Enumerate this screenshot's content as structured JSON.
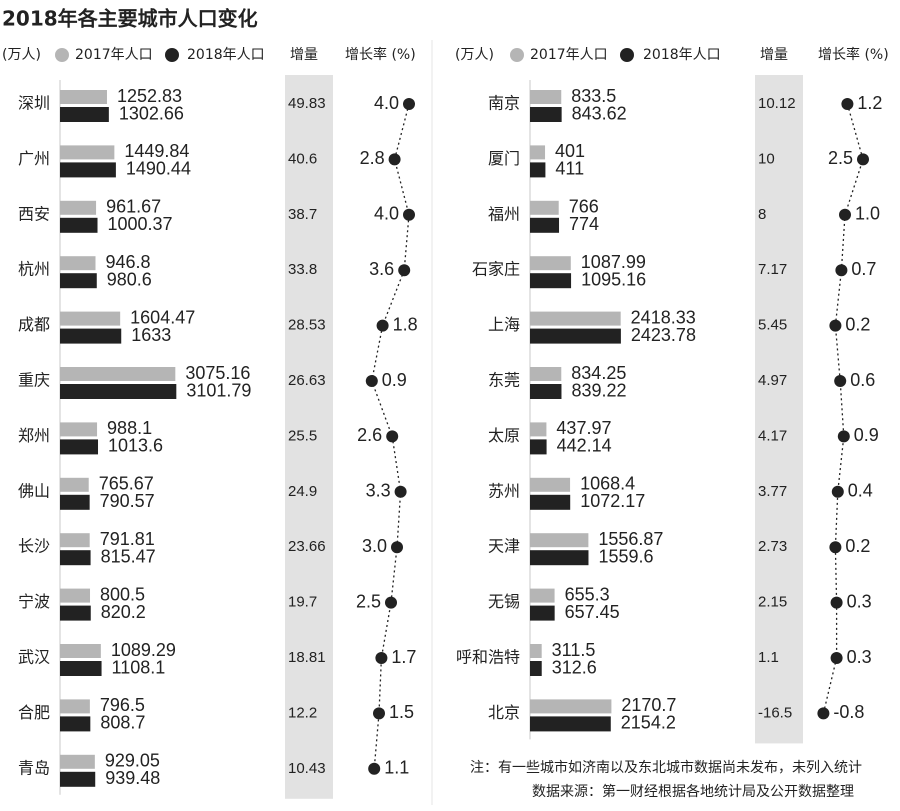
{
  "title": "2018年各主要城市人口变化",
  "notes": [
    "注：有一些城市如济南以及东北城市数据尚未发布，未列入统计",
    "数据来源：第一财经根据各地统计局及公开数据整理"
  ],
  "chart_data": [
    {
      "type": "bar",
      "orientation": "horizontal",
      "unit": "(万人)",
      "xlim": [
        0,
        4000
      ],
      "categories": [
        "深圳",
        "广州",
        "西安",
        "杭州",
        "成都",
        "重庆",
        "郑州",
        "佛山",
        "长沙",
        "宁波",
        "武汉",
        "合肥",
        "青岛"
      ],
      "series": [
        {
          "name": "2017年人口",
          "color": "#b5b5b5",
          "values": [
            1252.83,
            1449.84,
            961.67,
            946.8,
            1604.47,
            3075.16,
            988.1,
            765.67,
            791.81,
            800.5,
            1089.29,
            796.5,
            929.05
          ]
        },
        {
          "name": "2018年人口",
          "color": "#222222",
          "values": [
            1302.66,
            1490.44,
            1000.37,
            980.6,
            1633,
            3101.79,
            1013.6,
            790.57,
            815.47,
            820.2,
            1108.1,
            808.7,
            939.48
          ]
        }
      ],
      "increase": {
        "name": "增量",
        "values": [
          49.83,
          40.6,
          38.7,
          33.8,
          28.53,
          26.63,
          25.5,
          24.9,
          23.66,
          19.7,
          18.81,
          12.2,
          10.43
        ]
      },
      "growth": {
        "name": "增长率 (%)",
        "xlim": [
          -1,
          5
        ],
        "color": "#222222",
        "values": [
          4.0,
          2.8,
          4.0,
          3.6,
          1.8,
          0.9,
          2.6,
          3.3,
          3.0,
          2.5,
          1.7,
          1.5,
          1.1
        ],
        "value_labels": [
          "4.0",
          "2.8",
          "4.0",
          "3.6",
          "1.8",
          "0.9",
          "2.6",
          "3.3",
          "3.0",
          "2.5",
          "1.7",
          "1.5",
          "1.1"
        ]
      }
    },
    {
      "type": "bar",
      "orientation": "horizontal",
      "unit": "(万人)",
      "xlim": [
        0,
        4000
      ],
      "categories": [
        "南京",
        "厦门",
        "福州",
        "石家庄",
        "上海",
        "东莞",
        "太原",
        "苏州",
        "天津",
        "无锡",
        "呼和浩特",
        "北京"
      ],
      "series": [
        {
          "name": "2017年人口",
          "color": "#b5b5b5",
          "values": [
            833.5,
            401,
            766,
            1087.99,
            2418.33,
            834.25,
            437.97,
            1068.4,
            1556.87,
            655.3,
            311.5,
            2170.7
          ]
        },
        {
          "name": "2018年人口",
          "color": "#222222",
          "values": [
            843.62,
            411,
            774,
            1095.16,
            2423.78,
            839.22,
            442.14,
            1072.17,
            1559.6,
            657.45,
            312.6,
            2154.2
          ]
        }
      ],
      "increase": {
        "name": "增量",
        "values": [
          10.12,
          10,
          8,
          7.17,
          5.45,
          4.97,
          4.17,
          3.77,
          2.73,
          2.15,
          1.1,
          -16.5
        ]
      },
      "growth": {
        "name": "增长率 (%)",
        "xlim": [
          -1,
          5
        ],
        "color": "#222222",
        "values": [
          1.2,
          2.5,
          1.0,
          0.7,
          0.2,
          0.6,
          0.9,
          0.4,
          0.2,
          0.3,
          0.3,
          -0.8
        ],
        "value_labels": [
          "1.2",
          "2.5",
          "1.0",
          "0.7",
          "0.2",
          "0.6",
          "0.9",
          "0.4",
          "0.2",
          "0.3",
          "0.3",
          "-0.8"
        ]
      }
    }
  ]
}
